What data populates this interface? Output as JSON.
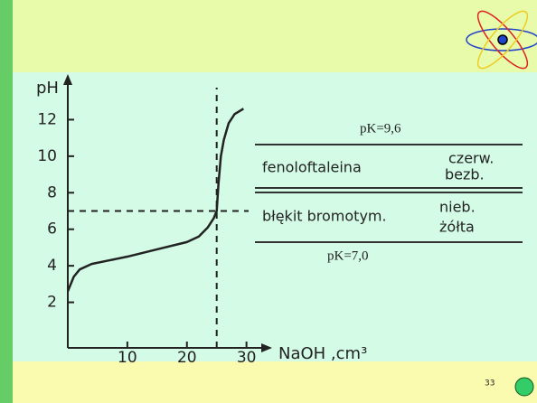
{
  "chart_data": {
    "type": "line",
    "ylabel": "pH",
    "xlabel": "NaOH ,cm³",
    "x": [
      0,
      1,
      2,
      4,
      7,
      10,
      15,
      20,
      22,
      23.5,
      24.5,
      25,
      25.3,
      25.7,
      26.2,
      27,
      28,
      29.5
    ],
    "series": [
      {
        "name": null,
        "color": "#222222",
        "values": [
          2.6,
          3.4,
          3.8,
          4.1,
          4.3,
          4.5,
          4.9,
          5.3,
          5.6,
          6.1,
          6.6,
          7.0,
          8.5,
          10.0,
          10.9,
          11.8,
          12.3,
          12.6
        ]
      }
    ],
    "xlim": [
      0,
      34
    ],
    "ylim": [
      0,
      14
    ],
    "xticks": [
      10,
      20,
      30
    ],
    "yticks": [
      2,
      4,
      6,
      8,
      10,
      12
    ],
    "reference_lines": {
      "x": 25,
      "y": 7
    },
    "annotations": [
      "pK=9,6",
      "fenoloftaleina",
      "czerw.",
      "bezb.",
      "błękit bromotym.",
      "nieb.",
      "żółta",
      "pK=7,0"
    ],
    "slide_number": "33"
  }
}
